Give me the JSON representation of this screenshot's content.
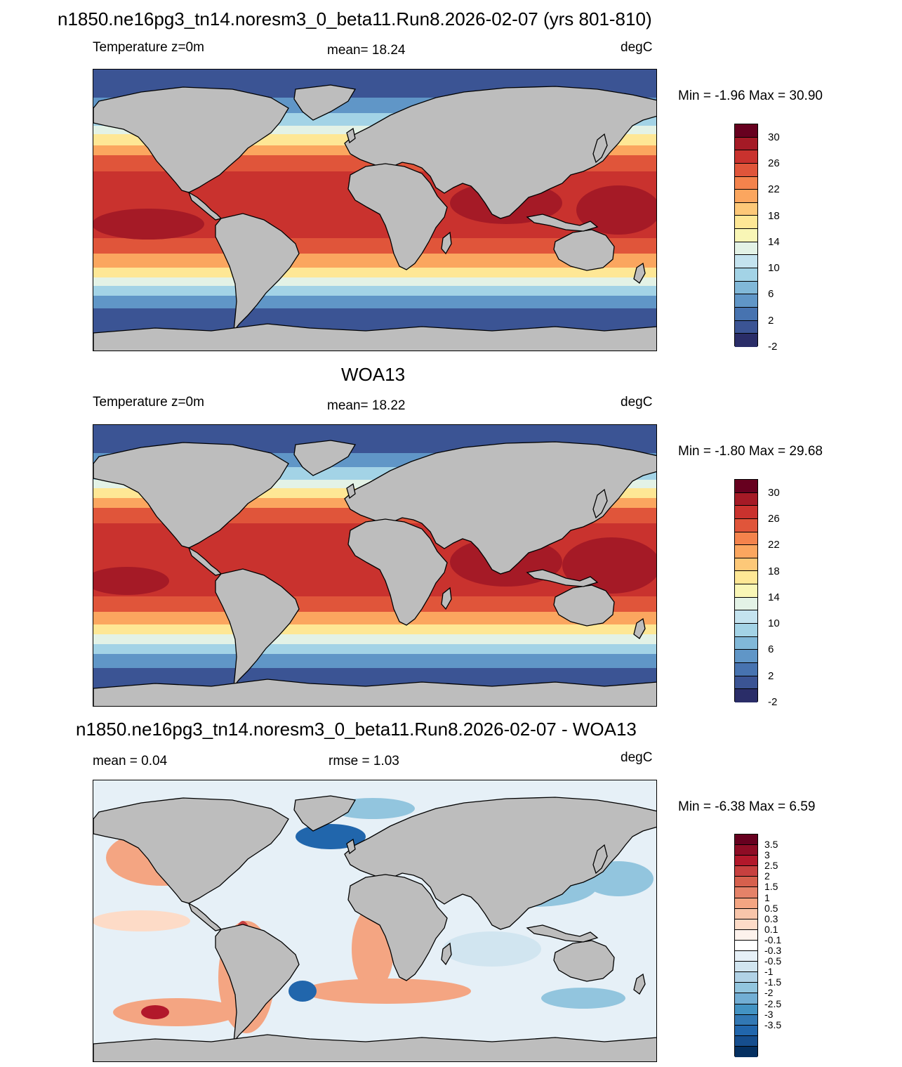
{
  "panel1": {
    "title": "n1850.ne16pg3_tn14.noresm3_0_beta11.Run8.2026-02-07 (yrs 801-810)",
    "left": "Temperature z=0m",
    "center": "mean=  18.24",
    "right": "degC",
    "minmax": "Min =  -1.96 Max =  30.90"
  },
  "panel2": {
    "title": "WOA13",
    "left": "Temperature z=0m",
    "center": "mean=  18.22",
    "right": "degC",
    "minmax": "Min =  -1.80 Max =  29.68"
  },
  "panel3": {
    "title": "n1850.ne16pg3_tn14.noresm3_0_beta11.Run8.2026-02-07 - WOA13",
    "left": "mean =   0.04",
    "center": "rmse =   1.03",
    "right": "degC",
    "minmax": "Min =  -6.38 Max =   6.59"
  },
  "colorbar_temp": {
    "labels": [
      "30",
      "26",
      "22",
      "18",
      "14",
      "10",
      "6",
      "2",
      "-2"
    ],
    "colors": [
      "#67001f",
      "#a51a26",
      "#c9322e",
      "#e0553a",
      "#f4834c",
      "#fba65f",
      "#fdc878",
      "#fee795",
      "#f9f6b6",
      "#e3f2e6",
      "#c4e3ef",
      "#a3d3e6",
      "#81b8d8",
      "#6096c7",
      "#4773b0",
      "#3b5494",
      "#2a2d68"
    ]
  },
  "colorbar_diff": {
    "labels": [
      "3.5",
      "3",
      "2.5",
      "2",
      "1.5",
      "1",
      "0.5",
      "0.3",
      "0.1",
      "-0.1",
      "-0.3",
      "-0.5",
      "-1",
      "-1.5",
      "-2",
      "-2.5",
      "-3",
      "-3.5"
    ],
    "colors": [
      "#67001f",
      "#8e0c25",
      "#b2182b",
      "#c7403f",
      "#d6604d",
      "#e58268",
      "#f4a582",
      "#f8c5aa",
      "#fddbc7",
      "#fdf2ec",
      "#ffffff",
      "#e6f0f7",
      "#d1e5f0",
      "#b1d2e6",
      "#92c5de",
      "#72aed4",
      "#4393c3",
      "#3278b4",
      "#2166ac",
      "#164e8e",
      "#053061"
    ]
  },
  "chart_data": [
    {
      "type": "heatmap",
      "title": "n1850.ne16pg3_tn14.noresm3_0_beta11.Run8.2026-02-07 (yrs 801-810)",
      "variable": "Temperature z=0m",
      "units": "degC",
      "mean": 18.24,
      "min": -1.96,
      "max": 30.9,
      "levels": [
        -2,
        0,
        2,
        4,
        6,
        8,
        10,
        12,
        14,
        16,
        18,
        20,
        22,
        24,
        26,
        28,
        30
      ]
    },
    {
      "type": "heatmap",
      "title": "WOA13",
      "variable": "Temperature z=0m",
      "units": "degC",
      "mean": 18.22,
      "min": -1.8,
      "max": 29.68,
      "levels": [
        -2,
        0,
        2,
        4,
        6,
        8,
        10,
        12,
        14,
        16,
        18,
        20,
        22,
        24,
        26,
        28,
        30
      ]
    },
    {
      "type": "heatmap",
      "title": "n1850.ne16pg3_tn14.noresm3_0_beta11.Run8.2026-02-07 - WOA13",
      "units": "degC",
      "mean": 0.04,
      "rmse": 1.03,
      "min": -6.38,
      "max": 6.59,
      "levels": [
        -3.5,
        -3,
        -2.5,
        -2,
        -1.5,
        -1,
        -0.5,
        -0.3,
        -0.1,
        0.1,
        0.3,
        0.5,
        1,
        1.5,
        2,
        2.5,
        3,
        3.5
      ]
    }
  ]
}
